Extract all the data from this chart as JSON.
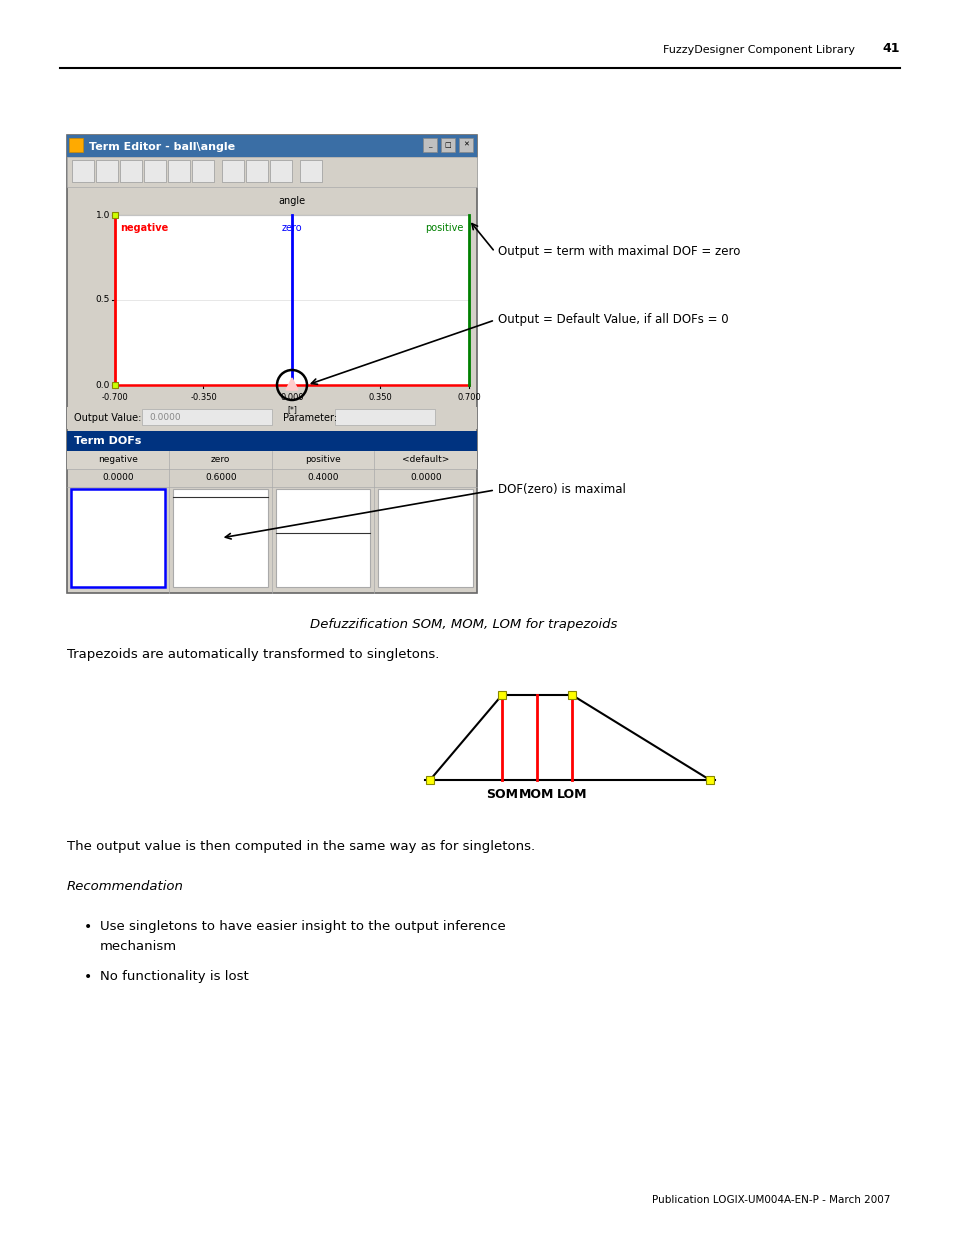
{
  "page_header_text": "FuzzyDesigner Component Library",
  "page_number": "41",
  "footer_text": "Publication LOGIX-UM004A-EN-P - March 2007",
  "title_bar_text": "Term Editor - ball\\angle",
  "title_bar_color": "#3a6ea5",
  "annotation1_text": "Output = term with maximal DOF = zero",
  "annotation2_text": "Output = Default Value, if all DOFs = 0",
  "annotation3_text": "DOF(zero) is maximal",
  "italic_heading": "Defuzzification SOM, MOM, LOM for trapezoids",
  "para1": "Trapezoids are automatically transformed to singletons.",
  "para2": "The output value is then computed in the same way as for singletons.",
  "rec_heading": "Recommendation",
  "bullet1a": "Use singletons to have easier insight to the output inference",
  "bullet1b": "mechanism",
  "bullet2": "No functionality is lost",
  "bg_color": "#ffffff",
  "text_color": "#000000",
  "gray_bg": "#d4d0c8",
  "title_bar_color2": "#1a3a8a"
}
